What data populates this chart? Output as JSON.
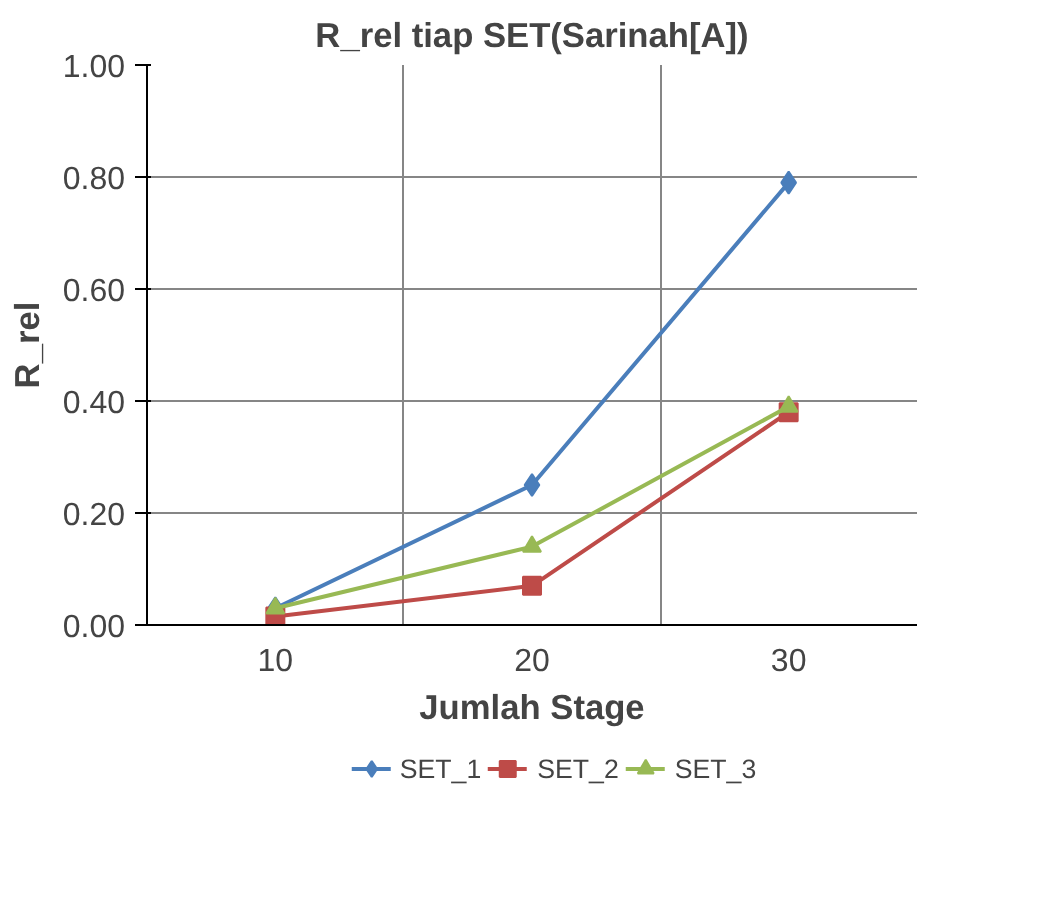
{
  "chart_data": {
    "type": "line",
    "title": "R_rel tiap SET(Sarinah[A])",
    "xlabel": "Jumlah Stage",
    "ylabel": "R_rel",
    "categories": [
      "10",
      "20",
      "30"
    ],
    "series": [
      {
        "name": "SET_1",
        "color": "#4a7ebb",
        "marker": "diamond",
        "values": [
          0.03,
          0.25,
          0.79
        ]
      },
      {
        "name": "SET_2",
        "color": "#be4b48",
        "marker": "square",
        "values": [
          0.015,
          0.07,
          0.38
        ]
      },
      {
        "name": "SET_3",
        "color": "#98b954",
        "marker": "triangle",
        "values": [
          0.03,
          0.14,
          0.39
        ]
      }
    ],
    "ylim": [
      0,
      1
    ],
    "yticks": [
      {
        "value": 0,
        "label": "0.00"
      },
      {
        "value": 0.2,
        "label": "0.20"
      },
      {
        "value": 0.4,
        "label": "0.40"
      },
      {
        "value": 0.6,
        "label": "0.60"
      },
      {
        "value": 0.8,
        "label": "0.80"
      },
      {
        "value": 1,
        "label": "1.00"
      }
    ],
    "grid": true,
    "legend": "bottom",
    "line_style": "solid"
  }
}
